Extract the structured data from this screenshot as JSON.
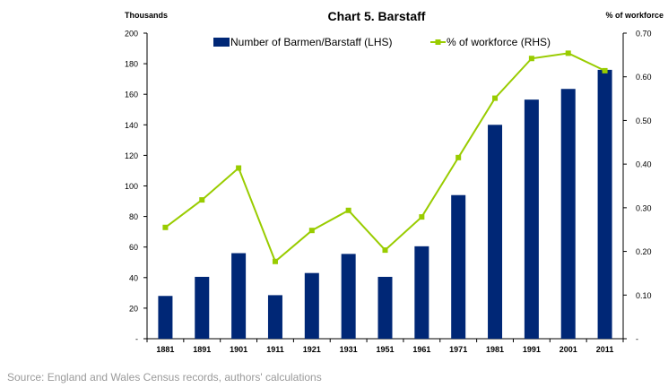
{
  "chart_data": {
    "type": "bar+line",
    "title": "Chart 5. Barstaff",
    "left_axis_label": "Thousands",
    "right_axis_label": "% of workforce",
    "categories": [
      "1881",
      "1891",
      "1901",
      "1911",
      "1921",
      "1931",
      "1951",
      "1961",
      "1971",
      "1981",
      "1991",
      "2001",
      "2011"
    ],
    "series": [
      {
        "name": "Number of Barmen/Barstaff (LHS)",
        "type": "bar",
        "axis": "left",
        "color": "#002776",
        "values": [
          28,
          40.5,
          56,
          28.5,
          43,
          55.5,
          40.5,
          60.5,
          94,
          140,
          156.5,
          163.5,
          176
        ]
      },
      {
        "name": "% of workforce (RHS)",
        "type": "line",
        "axis": "right",
        "color": "#99cc00",
        "values": [
          0.255,
          0.318,
          0.391,
          0.177,
          0.248,
          0.294,
          0.203,
          0.279,
          0.415,
          0.551,
          0.642,
          0.654,
          0.614
        ]
      }
    ],
    "left_axis": {
      "min": 0,
      "max": 200,
      "step": 20,
      "ticks": [
        "-",
        "20",
        "40",
        "60",
        "80",
        "100",
        "120",
        "140",
        "160",
        "180",
        "200"
      ]
    },
    "right_axis": {
      "min": 0,
      "max": 0.7,
      "step": 0.1,
      "ticks": [
        "-",
        "0.10",
        "0.20",
        "0.30",
        "0.40",
        "0.50",
        "0.60",
        "0.70"
      ]
    },
    "legend_position": "top-center",
    "grid": false
  },
  "source_text": "Source: England and Wales Census records, authors' calculations"
}
